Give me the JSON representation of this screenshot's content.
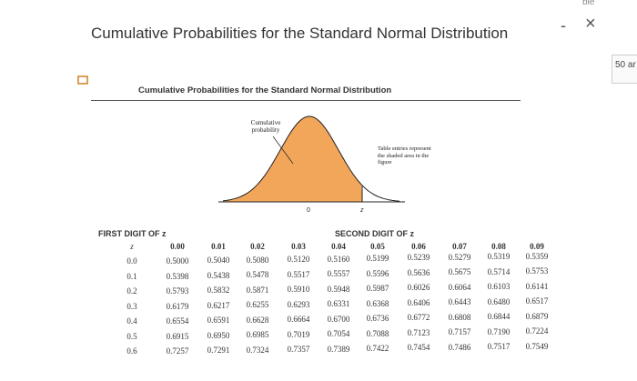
{
  "window": {
    "title": "Cumulative Probabilities for the Standard Normal Distribution",
    "top_fragment": "ble",
    "side_fragment": "50 ar"
  },
  "document": {
    "title": "Cumulative Probabilities for the Standard Normal Distribution",
    "figure": {
      "left_label": "Cumulative probability",
      "right_note": "Table entries represent the shaded area in the figure",
      "axis_zero": "0",
      "axis_z": "z"
    },
    "table": {
      "row_group": "FIRST DIGIT OF z",
      "column_group": "SECOND DIGIT OF z",
      "row_header": "z",
      "columns": [
        "0.00",
        "0.01",
        "0.02",
        "0.03",
        "0.04",
        "0.05",
        "0.06",
        "0.07",
        "0.08",
        "0.09"
      ],
      "rows": [
        {
          "z": "0.0",
          "cells": [
            "0.5000",
            "0.5040",
            "0.5080",
            "0.5120",
            "0.5160",
            "0.5199",
            "0.5239",
            "0.5279",
            "0.5319",
            "0.5359"
          ]
        },
        {
          "z": "0.1",
          "cells": [
            "0.5398",
            "0.5438",
            "0.5478",
            "0.5517",
            "0.5557",
            "0.5596",
            "0.5636",
            "0.5675",
            "0.5714",
            "0.5753"
          ]
        },
        {
          "z": "0.2",
          "cells": [
            "0.5793",
            "0.5832",
            "0.5871",
            "0.5910",
            "0.5948",
            "0.5987",
            "0.6026",
            "0.6064",
            "0.6103",
            "0.6141"
          ]
        },
        {
          "z": "0.3",
          "cells": [
            "0.6179",
            "0.6217",
            "0.6255",
            "0.6293",
            "0.6331",
            "0.6368",
            "0.6406",
            "0.6443",
            "0.6480",
            "0.6517"
          ]
        },
        {
          "z": "0.4",
          "cells": [
            "0.6554",
            "0.6591",
            "0.6628",
            "0.6664",
            "0.6700",
            "0.6736",
            "0.6772",
            "0.6808",
            "0.6844",
            "0.6879"
          ]
        },
        {
          "z": "0.5",
          "cells": [
            "0.6915",
            "0.6950",
            "0.6985",
            "0.7019",
            "0.7054",
            "0.7088",
            "0.7123",
            "0.7157",
            "0.7190",
            "0.7224"
          ]
        },
        {
          "z": "0.6",
          "cells": [
            "0.7257",
            "0.7291",
            "0.7324",
            "0.7357",
            "0.7389",
            "0.7422",
            "0.7454",
            "0.7486",
            "0.7517",
            "0.7549"
          ]
        }
      ]
    }
  }
}
